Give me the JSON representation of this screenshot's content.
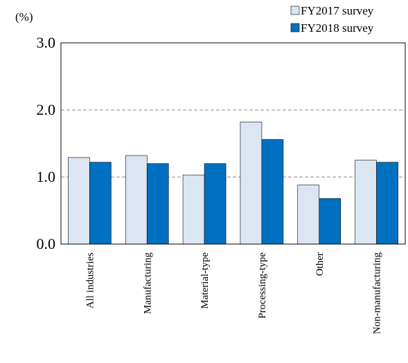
{
  "chart_data": {
    "type": "bar",
    "y_label": "(%)",
    "categories": [
      "All industries",
      "Manufacturing",
      "Material-type",
      "Processing-type",
      "Other",
      "Non-manufacturing"
    ],
    "series": [
      {
        "name": "FY2017 survey",
        "color": "#dce6f2",
        "values": [
          1.29,
          1.32,
          1.03,
          1.82,
          0.88,
          1.25
        ]
      },
      {
        "name": "FY2018 survey",
        "color": "#0070c0",
        "values": [
          1.22,
          1.2,
          1.2,
          1.56,
          0.68,
          1.22
        ]
      }
    ],
    "ylim": [
      0,
      3
    ],
    "yticks": [
      {
        "value": 0,
        "label": "0.0"
      },
      {
        "value": 1,
        "label": "1.0"
      },
      {
        "value": 2,
        "label": "2.0"
      },
      {
        "value": 3,
        "label": "3.0"
      }
    ],
    "grid": true,
    "legend": "top-right"
  }
}
